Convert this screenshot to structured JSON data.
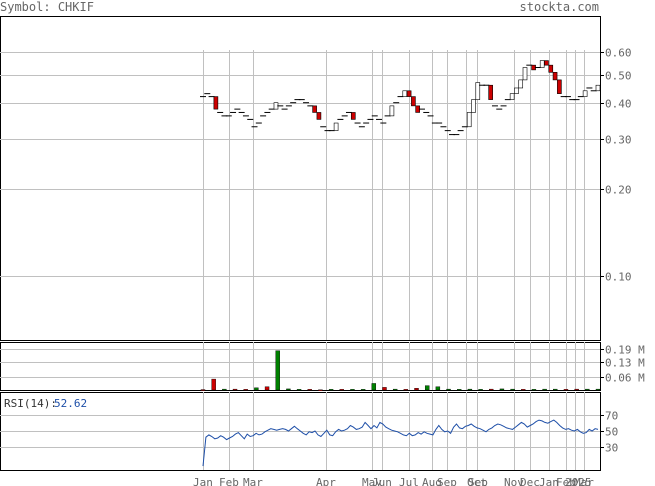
{
  "header": {
    "symbol_label": "Symbol:",
    "symbol": "CHKIF",
    "site": "stockta.com"
  },
  "colors": {
    "grid": "#c0c0c0",
    "frame": "#000000",
    "up_candle": "#008000",
    "down_candle": "#cc0000",
    "rsi_line": "#1e4fa8",
    "text": "#666666",
    "rsi_value": "#1e4fa8"
  },
  "chart_data": [
    {
      "type": "candlestick",
      "panel": "price",
      "scale": "log",
      "ylim": [
        0.06,
        0.8
      ],
      "y_ticks": [
        0.1,
        0.2,
        0.3,
        0.4,
        0.5,
        0.6
      ],
      "y_tick_labels": [
        "0.10",
        "0.20",
        "0.30",
        "0.40",
        "0.50",
        "0.60"
      ],
      "x_tick_labels": [
        "Jan",
        "Feb",
        "Mar",
        "Apr",
        "May",
        "Jun",
        "Jul",
        "Aug",
        "Sep",
        "Sep",
        "Oct",
        "Nov",
        "Dec",
        "Jan",
        "Feb",
        "2025",
        "Mar"
      ],
      "closes": [
        0.42,
        0.43,
        0.42,
        0.38,
        0.37,
        0.36,
        0.36,
        0.37,
        0.38,
        0.37,
        0.36,
        0.35,
        0.33,
        0.34,
        0.36,
        0.37,
        0.38,
        0.4,
        0.39,
        0.38,
        0.39,
        0.4,
        0.41,
        0.41,
        0.4,
        0.39,
        0.37,
        0.35,
        0.33,
        0.32,
        0.32,
        0.34,
        0.35,
        0.36,
        0.37,
        0.35,
        0.34,
        0.33,
        0.34,
        0.35,
        0.36,
        0.35,
        0.34,
        0.36,
        0.39,
        0.4,
        0.42,
        0.44,
        0.42,
        0.39,
        0.37,
        0.38,
        0.37,
        0.36,
        0.34,
        0.34,
        0.33,
        0.32,
        0.31,
        0.31,
        0.32,
        0.33,
        0.37,
        0.41,
        0.47,
        0.46,
        0.46,
        0.41,
        0.39,
        0.38,
        0.39,
        0.41,
        0.43,
        0.45,
        0.48,
        0.53,
        0.54,
        0.52,
        0.53,
        0.56,
        0.54,
        0.51,
        0.48,
        0.43,
        0.42,
        0.42,
        0.41,
        0.41,
        0.42,
        0.44,
        0.45,
        0.44,
        0.46
      ],
      "volume_colors": [
        "r",
        "r",
        "g",
        "r",
        "r",
        "g",
        "r",
        "g",
        "g",
        "g",
        "r",
        "r",
        "g",
        "r",
        "g",
        "g",
        "g",
        "r",
        "g",
        "r",
        "r",
        "g",
        "g",
        "g",
        "g",
        "g",
        "g",
        "r",
        "g",
        "g",
        "r",
        "g",
        "g",
        "g",
        "r",
        "r",
        "g",
        "g"
      ]
    },
    {
      "type": "bar",
      "panel": "volume",
      "ylim": [
        0,
        0.22
      ],
      "y_ticks": [
        0.06,
        0.13,
        0.19
      ],
      "y_tick_labels": [
        "0.06 M",
        "0.13 M",
        "0.19 M"
      ],
      "values": [
        0.002,
        0.05,
        0.004,
        0.004,
        0.003,
        0.01,
        0.015,
        0.18,
        0.005,
        0.003,
        0.003,
        0.001,
        0.003,
        0.003,
        0.003,
        0.003,
        0.03,
        0.012,
        0.004,
        0.003,
        0.008,
        0.02,
        0.015,
        0.004,
        0.003,
        0.004,
        0.003,
        0.004,
        0.005,
        0.004,
        0.003,
        0.003,
        0.004,
        0.004,
        0.003,
        0.004,
        0.004,
        0.004
      ],
      "ylabel": ""
    },
    {
      "type": "line",
      "panel": "rsi",
      "label": "RSI(14):",
      "value_text": "52.62",
      "ylim": [
        0,
        100
      ],
      "y_ticks": [
        30,
        50,
        70
      ],
      "y_tick_labels": [
        "30",
        "50",
        "70"
      ],
      "values": [
        5,
        42,
        45,
        43,
        40,
        41,
        44,
        42,
        39,
        41,
        43,
        46,
        48,
        44,
        40,
        46,
        43,
        44,
        47,
        45,
        46,
        49,
        51,
        53,
        52,
        51,
        52,
        53,
        52,
        50,
        53,
        56,
        53,
        50,
        47,
        45,
        49,
        48,
        50,
        45,
        43,
        47,
        51,
        45,
        44,
        49,
        52,
        50,
        51,
        53,
        57,
        55,
        52,
        53,
        55,
        61,
        57,
        53,
        57,
        54,
        61,
        59,
        55,
        53,
        51,
        50,
        49,
        47,
        45,
        44,
        47,
        44,
        45,
        48,
        46,
        49,
        47,
        46,
        45,
        52,
        57,
        52,
        49,
        50,
        47,
        55,
        59,
        54,
        53,
        56,
        57,
        59,
        56,
        54,
        53,
        51,
        49,
        52,
        54,
        57,
        59,
        58,
        56,
        54,
        53,
        52,
        55,
        58,
        61,
        59,
        55,
        57,
        59,
        62,
        64,
        63,
        61,
        60,
        62,
        64,
        61,
        57,
        54,
        52,
        53,
        51,
        50,
        52,
        49,
        47,
        48,
        52,
        50,
        53,
        52
      ]
    }
  ]
}
